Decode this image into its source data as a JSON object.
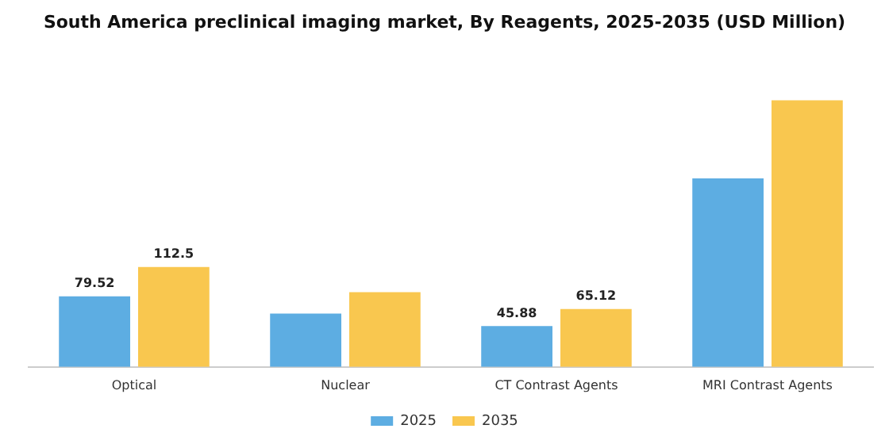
{
  "chart_data": {
    "type": "bar",
    "title": "South America preclinical imaging market, By Reagents, 2025-2035 (USD Million)",
    "categories": [
      "Optical",
      "Nuclear",
      "CT Contrast Agents",
      "MRI Contrast Agents"
    ],
    "series": [
      {
        "name": "2025",
        "color": "#5dade2",
        "values": [
          79.52,
          60,
          45.88,
          212
        ],
        "value_labels": [
          "79.52",
          null,
          "45.88",
          null
        ]
      },
      {
        "name": "2035",
        "color": "#f9c74f",
        "values": [
          112.5,
          84,
          65.12,
          300
        ],
        "value_labels": [
          "112.5",
          null,
          "65.12",
          null
        ]
      }
    ],
    "tick_labels": "x",
    "grid": false,
    "legend": "bottom"
  }
}
